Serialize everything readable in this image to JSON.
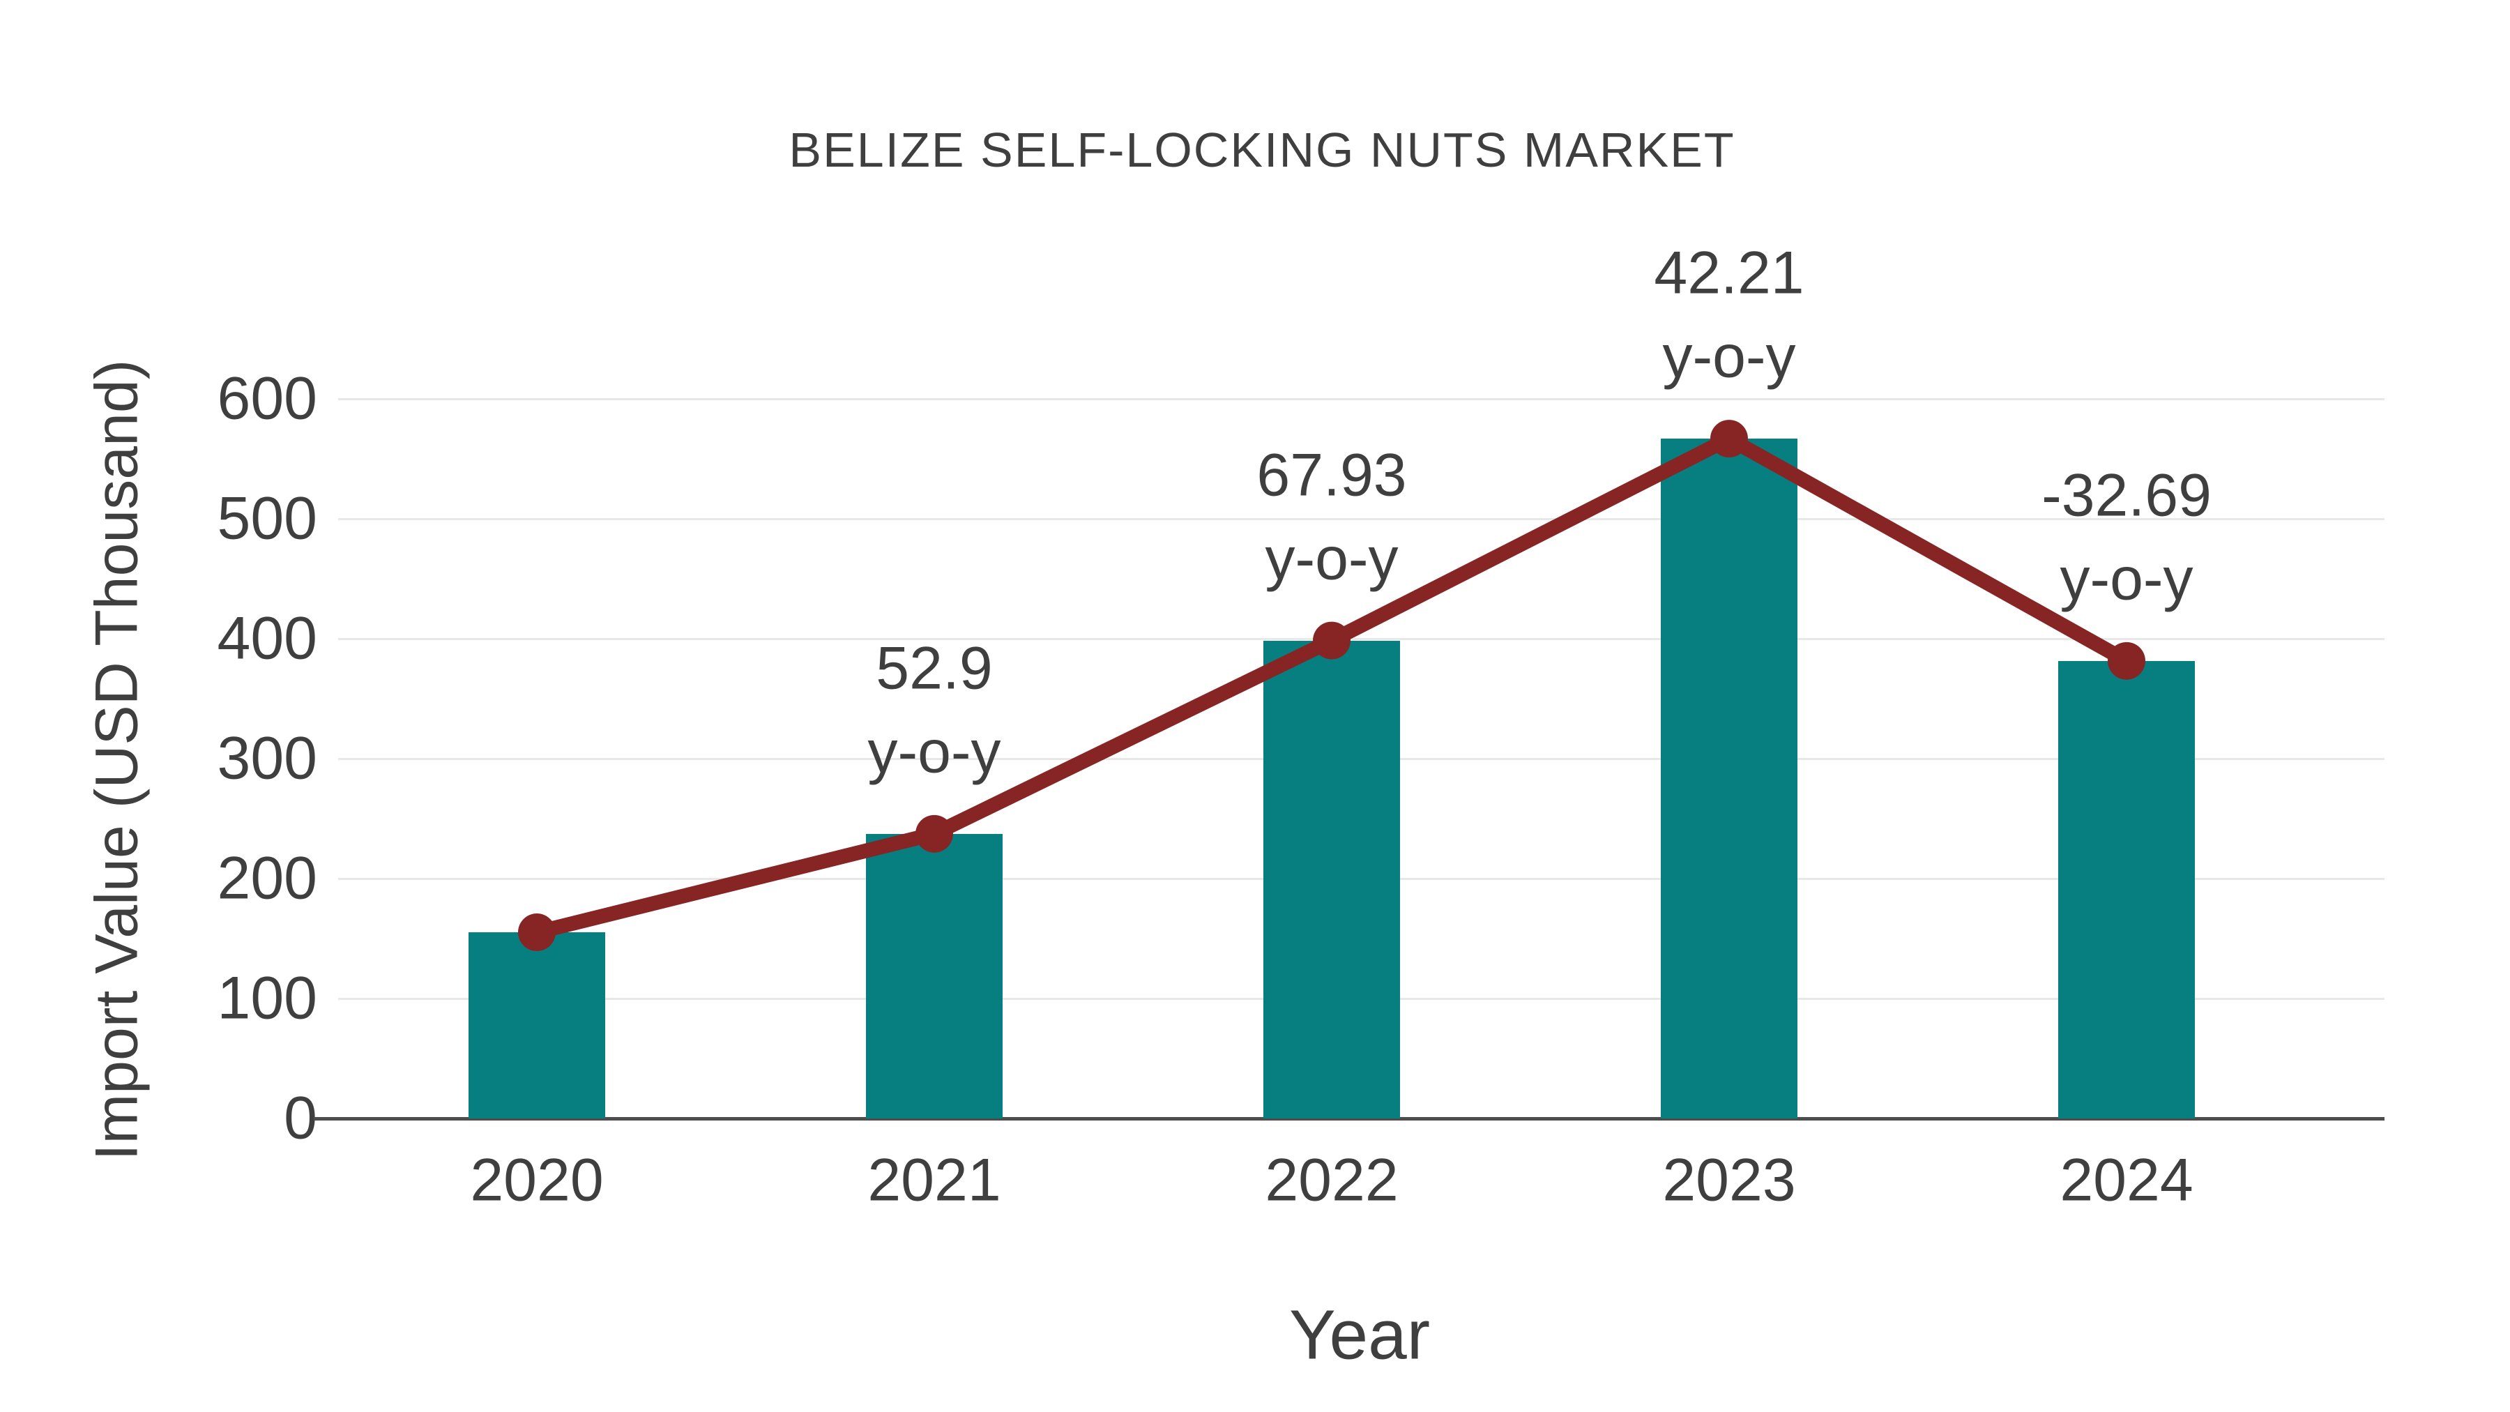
{
  "chart_data": {
    "type": "bar",
    "title": "BELIZE SELF-LOCKING NUTS MARKET",
    "xlabel": "Year",
    "ylabel": "Import Value (USD Thousand)",
    "categories": [
      "2020",
      "2021",
      "2022",
      "2023",
      "2024"
    ],
    "series": [
      {
        "name": "Import Value bars",
        "type": "bar",
        "color": "#077f80",
        "values": [
          155.2,
          237.3,
          398.5,
          566.8,
          381.5
        ]
      },
      {
        "name": "Import Value trend line",
        "type": "line",
        "color": "#872525",
        "values": [
          155.2,
          237.3,
          398.5,
          566.8,
          381.5
        ]
      }
    ],
    "annotations": [
      {
        "category": "2021",
        "value_label": "52.9",
        "unit_label": "y-o-y"
      },
      {
        "category": "2022",
        "value_label": "67.93",
        "unit_label": "y-o-y"
      },
      {
        "category": "2023",
        "value_label": "42.21",
        "unit_label": "y-o-y"
      },
      {
        "category": "2024",
        "value_label": "-32.69",
        "unit_label": "y-o-y"
      }
    ],
    "yticks": [
      0,
      100,
      200,
      300,
      400,
      500,
      600
    ],
    "ylim": [
      0,
      600
    ],
    "grid": true,
    "legend": false,
    "colors": {
      "grid": "#e8e8e8",
      "axis_line": "#4d4d4d",
      "text": "#3f3f3f",
      "background": "#ffffff"
    }
  }
}
